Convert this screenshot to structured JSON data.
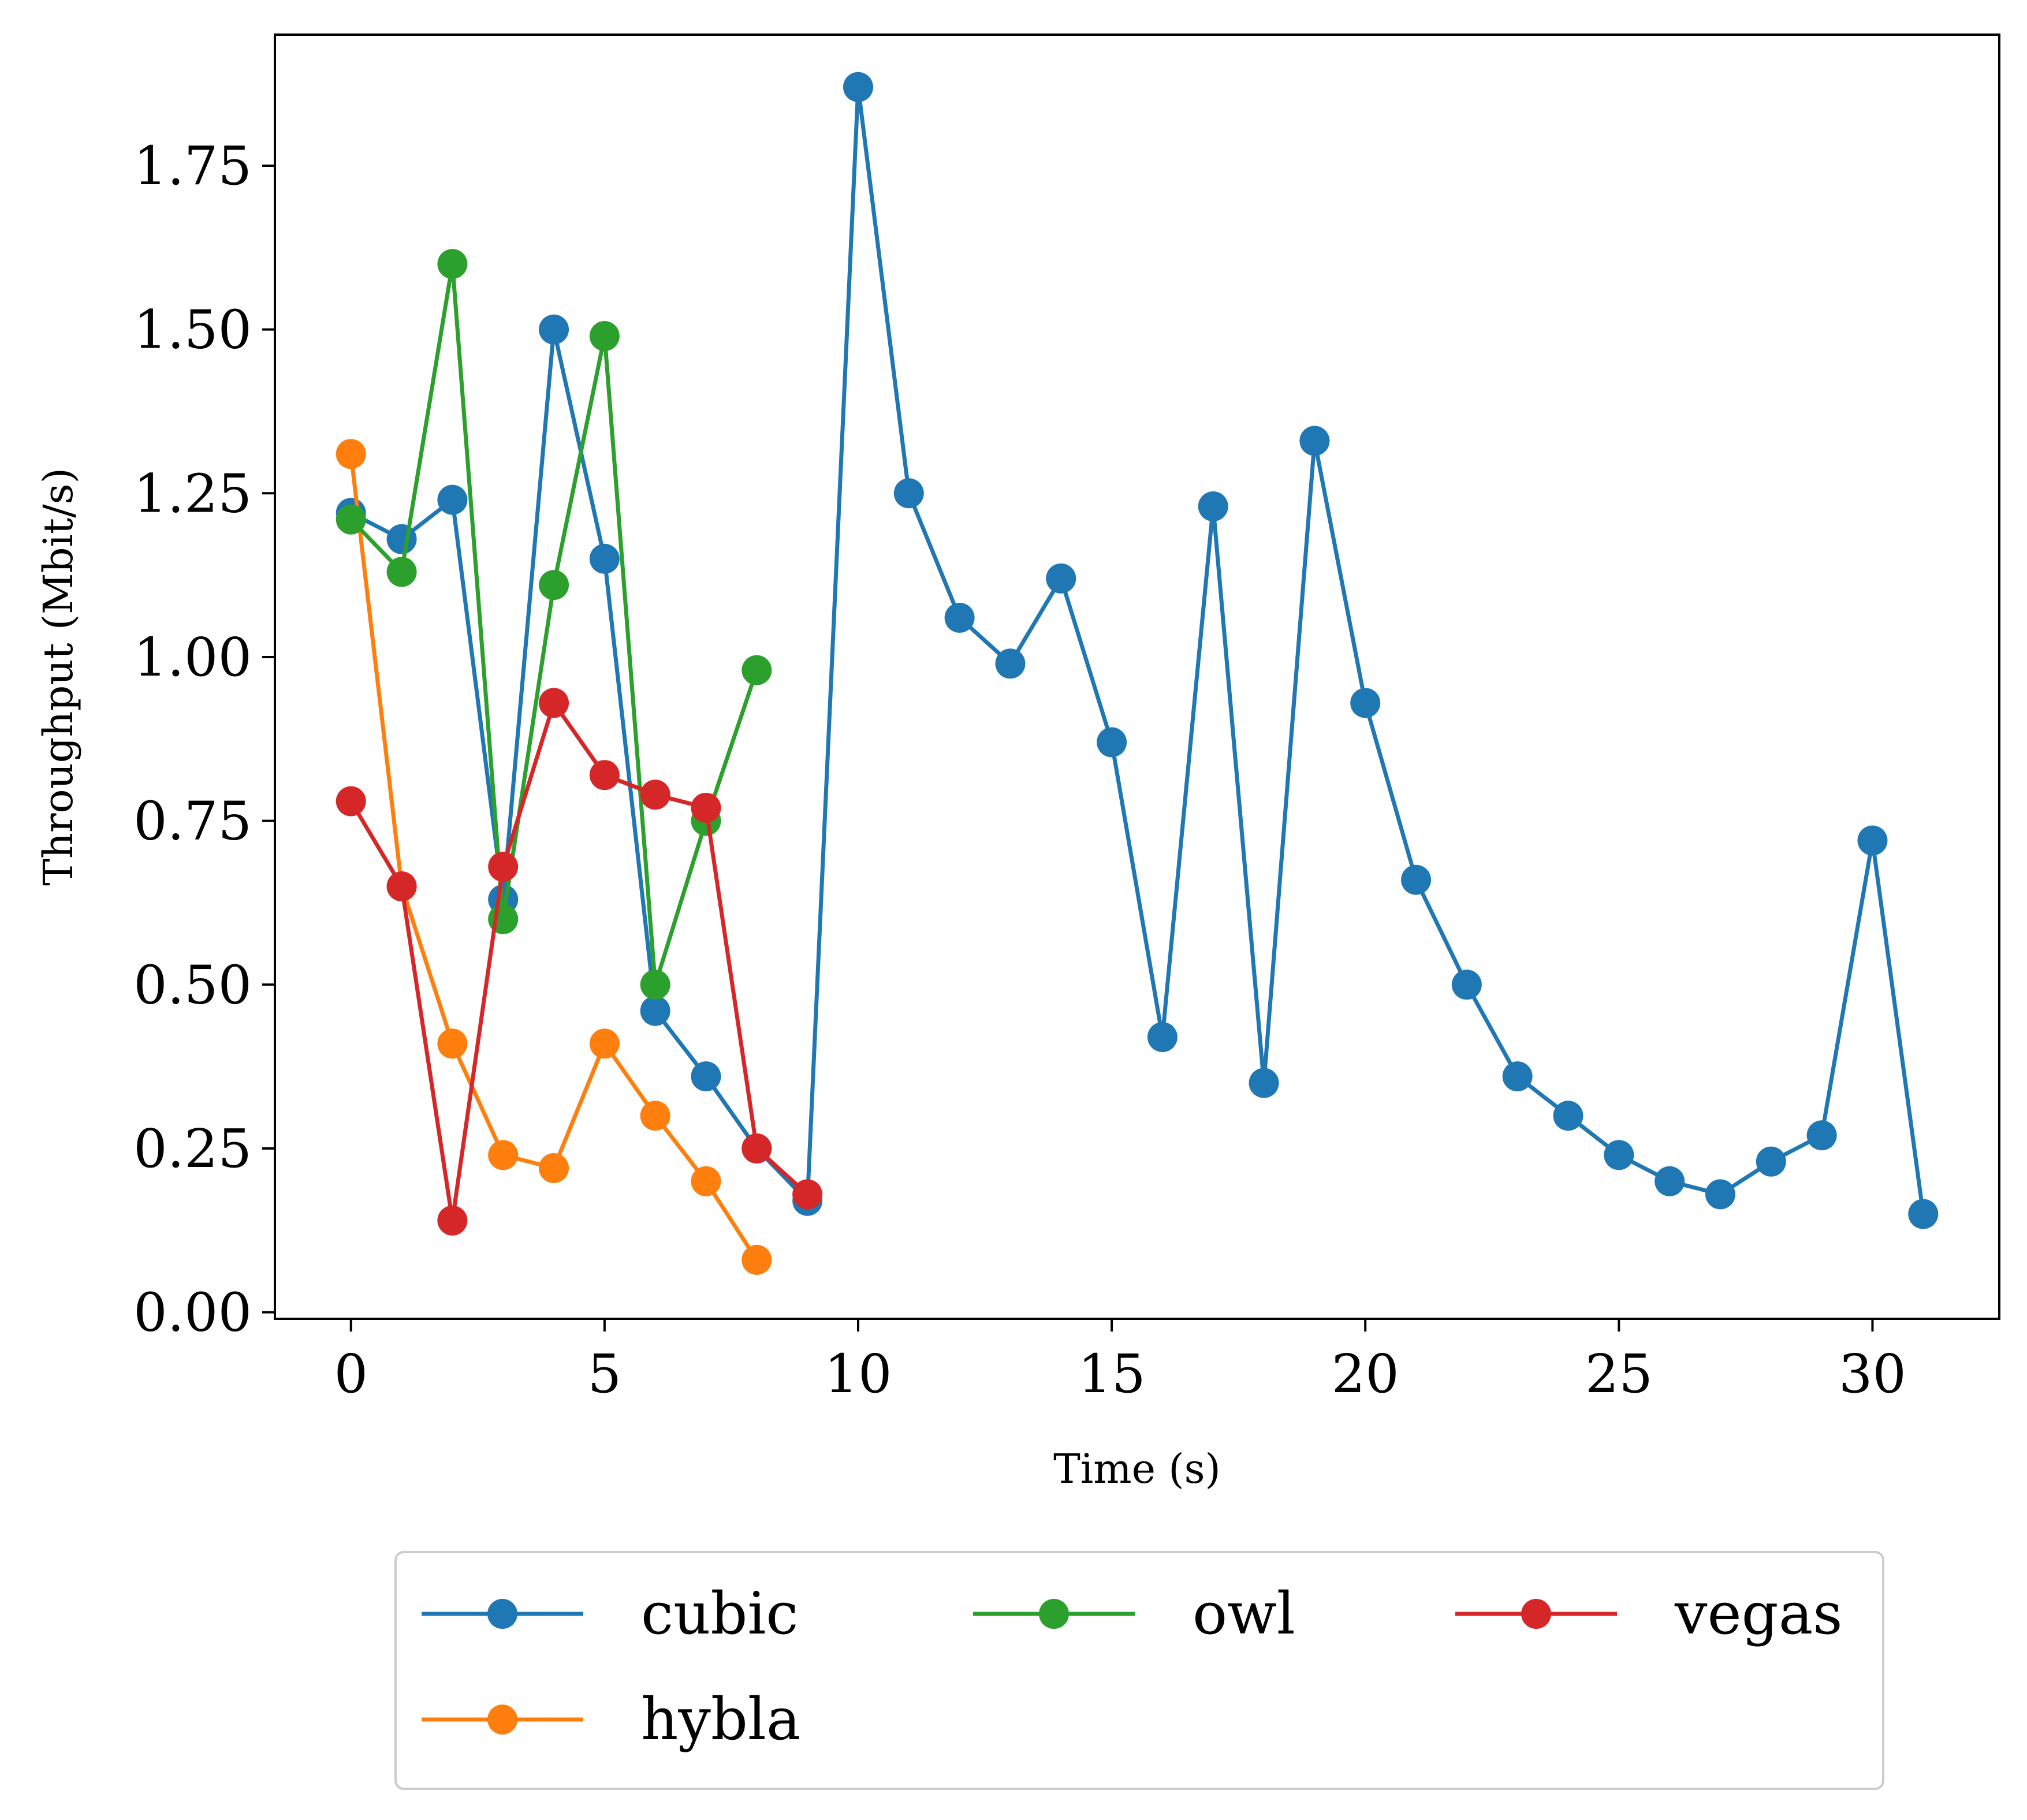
{
  "chart_data": {
    "type": "line",
    "title": "",
    "xlabel": "Time (s)",
    "ylabel": "Throughput (Mbit/s)",
    "xlim": [
      -1.5,
      32.5
    ],
    "ylim": [
      -0.01,
      1.95
    ],
    "x_ticks": [
      0,
      5,
      10,
      15,
      20,
      25,
      30
    ],
    "x_tick_labels": [
      "0",
      "5",
      "10",
      "15",
      "20",
      "25",
      "30"
    ],
    "y_ticks": [
      0,
      0.25,
      0.5,
      0.75,
      1.0,
      1.25,
      1.5,
      1.75
    ],
    "y_tick_labels": [
      "0.00",
      "0.25",
      "0.50",
      "0.75",
      "1.00",
      "1.25",
      "1.50",
      "1.75"
    ],
    "grid": false,
    "legend_position": "below chart",
    "series": [
      {
        "name": "cubic",
        "color": "#1f77b4",
        "x": [
          0,
          1,
          2,
          3,
          4,
          5,
          6,
          7,
          8,
          9,
          10,
          11,
          12,
          13,
          14,
          15,
          16,
          17,
          18,
          19,
          20,
          21,
          22,
          23,
          24,
          25,
          26,
          27,
          28,
          29,
          30,
          31
        ],
        "y": [
          1.22,
          1.18,
          1.24,
          0.63,
          1.5,
          1.15,
          0.46,
          0.36,
          0.25,
          0.17,
          1.87,
          1.25,
          1.06,
          0.99,
          1.12,
          0.87,
          0.42,
          1.23,
          0.35,
          1.33,
          0.93,
          0.66,
          0.5,
          0.36,
          0.3,
          0.24,
          0.2,
          0.18,
          0.23,
          0.27,
          0.72,
          0.15
        ]
      },
      {
        "name": "hybla",
        "color": "#ff7f0e",
        "x": [
          0,
          1,
          2,
          3,
          4,
          5,
          6,
          7,
          8
        ],
        "y": [
          1.31,
          0.65,
          0.41,
          0.24,
          0.22,
          0.41,
          0.3,
          0.2,
          0.08
        ]
      },
      {
        "name": "owl",
        "color": "#2ca02c",
        "x": [
          0,
          1,
          2,
          3,
          4,
          5,
          6,
          7,
          8
        ],
        "y": [
          1.21,
          1.13,
          1.6,
          0.6,
          1.11,
          1.49,
          0.5,
          0.75,
          0.98
        ]
      },
      {
        "name": "vegas",
        "color": "#d62728",
        "x": [
          0,
          1,
          2,
          3,
          4,
          5,
          6,
          7,
          8,
          9
        ],
        "y": [
          0.78,
          0.65,
          0.14,
          0.68,
          0.93,
          0.82,
          0.79,
          0.77,
          0.25,
          0.18
        ]
      }
    ],
    "legend_order": [
      "cubic",
      "owl",
      "vegas",
      "hybla"
    ]
  }
}
